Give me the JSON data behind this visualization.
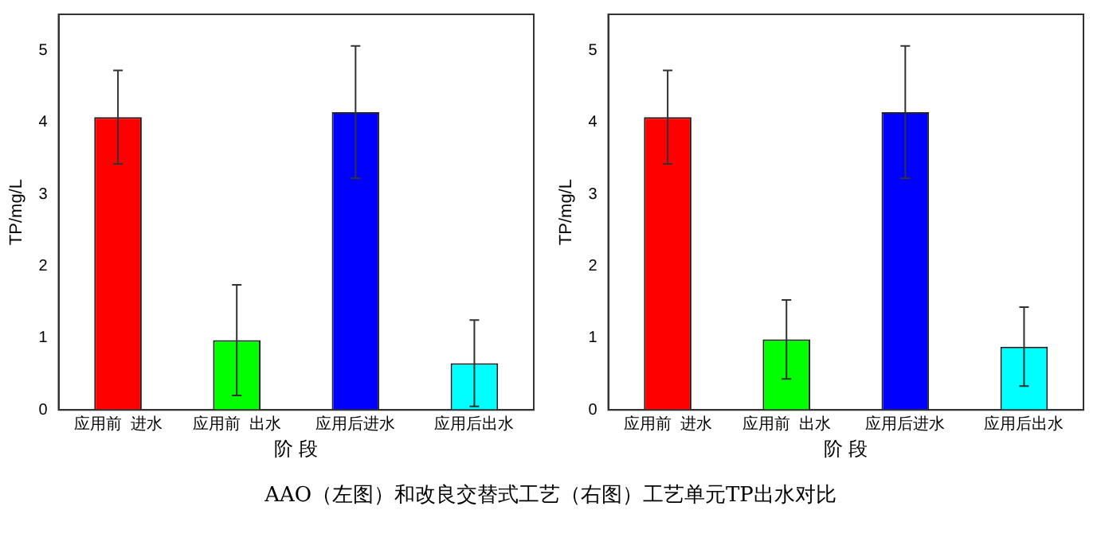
{
  "chart_data": [
    {
      "type": "bar",
      "categories": [
        "应用前  进水",
        "应用前  出水",
        "应用后进水",
        "应用后出水"
      ],
      "values": [
        4.07,
        0.97,
        4.14,
        0.65
      ],
      "errors": [
        0.65,
        0.77,
        0.92,
        0.6
      ],
      "colors": [
        "#ff0000",
        "#00ff00",
        "#0000ff",
        "#00ffff"
      ],
      "xlabel": "阶 段",
      "ylabel": "TP/mg/L",
      "ylim": [
        0,
        5.5
      ],
      "yticks": [
        0,
        1,
        2,
        3,
        4,
        5
      ],
      "grid": false,
      "legend": false,
      "annotations": [
        "AAO（左图）和改良交替式工艺（右图）工艺单元TP出水对比"
      ]
    },
    {
      "type": "bar",
      "categories": [
        "应用前  进水",
        "应用前  出水",
        "应用后进水",
        "应用后出水"
      ],
      "values": [
        4.07,
        0.98,
        4.14,
        0.88
      ],
      "errors": [
        0.65,
        0.55,
        0.92,
        0.55
      ],
      "colors": [
        "#ff0000",
        "#00ff00",
        "#0000ff",
        "#00ffff"
      ],
      "xlabel": "阶 段",
      "ylabel": "TP/mg/L",
      "ylim": [
        0,
        5.5
      ],
      "yticks": [
        0,
        1,
        2,
        3,
        4,
        5
      ],
      "grid": false,
      "legend": false
    }
  ]
}
